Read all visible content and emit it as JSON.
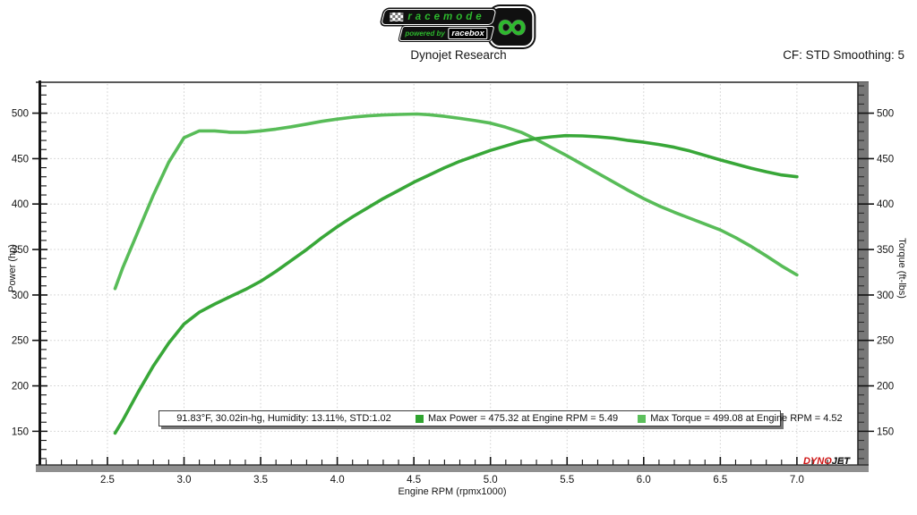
{
  "header": {
    "logo": {
      "racemode": "racemode",
      "powered_by": "powered by",
      "racebox": "racebox",
      "infinity": "∞"
    },
    "title": "Dynojet Research",
    "cf_label": "CF: STD Smoothing: 5"
  },
  "chart_data": {
    "type": "line",
    "title": "Dynojet Research",
    "xlabel": "Engine RPM (rpmx1000)",
    "ylabel_left": "Power (hp)",
    "ylabel_right": "Torque (ft-lbs)",
    "xlim": [
      2.056,
      7.398
    ],
    "ylim": [
      113,
      534
    ],
    "x_ticks": [
      2.5,
      3.0,
      3.5,
      4.0,
      4.5,
      5.0,
      5.5,
      6.0,
      6.5,
      7.0
    ],
    "y_ticks": [
      150,
      200,
      250,
      300,
      350,
      400,
      450,
      500
    ],
    "x_minor_step": 0.1,
    "y_minor_step": 10,
    "grid": "dotted",
    "series": [
      {
        "name": "Power",
        "color": "#38a738",
        "x": [
          2.55,
          2.6,
          2.7,
          2.8,
          2.9,
          3.0,
          3.1,
          3.2,
          3.3,
          3.4,
          3.5,
          3.6,
          3.7,
          3.8,
          3.9,
          4.0,
          4.1,
          4.2,
          4.3,
          4.4,
          4.5,
          4.6,
          4.7,
          4.8,
          4.9,
          5.0,
          5.1,
          5.2,
          5.3,
          5.4,
          5.49,
          5.6,
          5.7,
          5.8,
          5.9,
          6.0,
          6.1,
          6.2,
          6.3,
          6.4,
          6.5,
          6.6,
          6.7,
          6.8,
          6.9,
          7.0
        ],
        "y": [
          148,
          162,
          193,
          222,
          247,
          268,
          281,
          290,
          298,
          306,
          315,
          326,
          338,
          350,
          363,
          375,
          386,
          396,
          406,
          415,
          424,
          432,
          440,
          447,
          453,
          459,
          464,
          469,
          472,
          474,
          475.3,
          475,
          474,
          472.5,
          470,
          468,
          465.5,
          462.5,
          458.5,
          453.5,
          448.5,
          444,
          439.5,
          435.5,
          432,
          430
        ]
      },
      {
        "name": "Torque",
        "color": "#58bc58",
        "x": [
          2.55,
          2.6,
          2.7,
          2.8,
          2.9,
          3.0,
          3.1,
          3.2,
          3.3,
          3.4,
          3.5,
          3.6,
          3.7,
          3.8,
          3.9,
          4.0,
          4.1,
          4.2,
          4.3,
          4.4,
          4.52,
          4.6,
          4.7,
          4.8,
          4.9,
          5.0,
          5.1,
          5.2,
          5.3,
          5.4,
          5.5,
          5.6,
          5.7,
          5.8,
          5.9,
          6.0,
          6.1,
          6.2,
          6.3,
          6.4,
          6.5,
          6.6,
          6.7,
          6.8,
          6.9,
          7.0
        ],
        "y": [
          307,
          330,
          370,
          410,
          446,
          473,
          480.5,
          480.5,
          479,
          479,
          480.5,
          482.5,
          485,
          488,
          491,
          493.5,
          495.5,
          497,
          498,
          498.6,
          499.1,
          498.3,
          496.5,
          494.3,
          491.8,
          489,
          484.5,
          479,
          471,
          462,
          453,
          443.5,
          434,
          424.5,
          415,
          406,
          398,
          391,
          384.5,
          378,
          371.5,
          363,
          353.5,
          343,
          332,
          322
        ]
      }
    ],
    "legend": {
      "position": "bottom-center",
      "conditions": "91.83°F, 30.02in-hg, Humidity: 13.11%, STD:1.02",
      "entries": [
        {
          "label": "Max Power = 475.32 at Engine RPM = 5.49",
          "color": "#2fa42f"
        },
        {
          "label": "Max Torque = 499.08 at Engine RPM = 4.52",
          "color": "#5cc05c"
        }
      ]
    },
    "max_power": {
      "value": 475.32,
      "rpm": 5.49
    },
    "max_torque": {
      "value": 499.08,
      "rpm": 4.52
    },
    "branding": {
      "dyno": "DYNO",
      "jet": "JET"
    }
  }
}
